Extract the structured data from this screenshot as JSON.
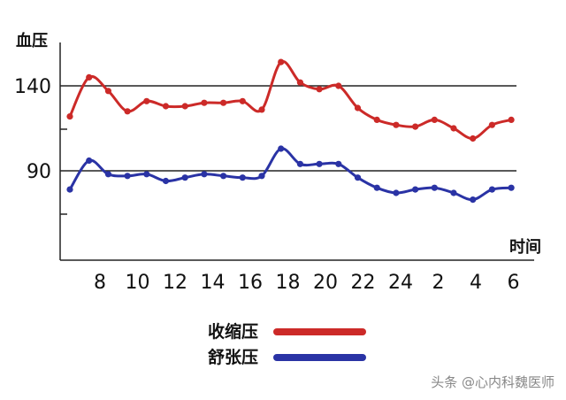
{
  "chart_data": {
    "type": "line",
    "ylabel": "血压",
    "xlabel": "时间",
    "y_ticks": [
      90,
      140
    ],
    "x_tick_labels": [
      "8",
      "10",
      "12",
      "14",
      "16",
      "18",
      "20",
      "22",
      "24",
      "2",
      "4",
      "6"
    ],
    "grid": "horizontal lines at 90 and 140",
    "legend_placement": "bottom-center",
    "series": [
      {
        "name": "收缩压",
        "color": "#cc2a28",
        "values": [
          122,
          145,
          137,
          125,
          131,
          128,
          128,
          130,
          130,
          131,
          126,
          154,
          142,
          138,
          140,
          127,
          120,
          117,
          116,
          120,
          115,
          109,
          117,
          120
        ]
      },
      {
        "name": "舒张压",
        "color": "#2a33a5",
        "values": [
          79,
          96,
          88,
          87,
          88,
          84,
          86,
          88,
          87,
          86,
          87,
          103,
          94,
          94,
          94,
          86,
          80,
          77,
          79,
          80,
          77,
          73,
          79,
          80
        ]
      }
    ]
  },
  "watermark": "头条 @心内科魏医师"
}
